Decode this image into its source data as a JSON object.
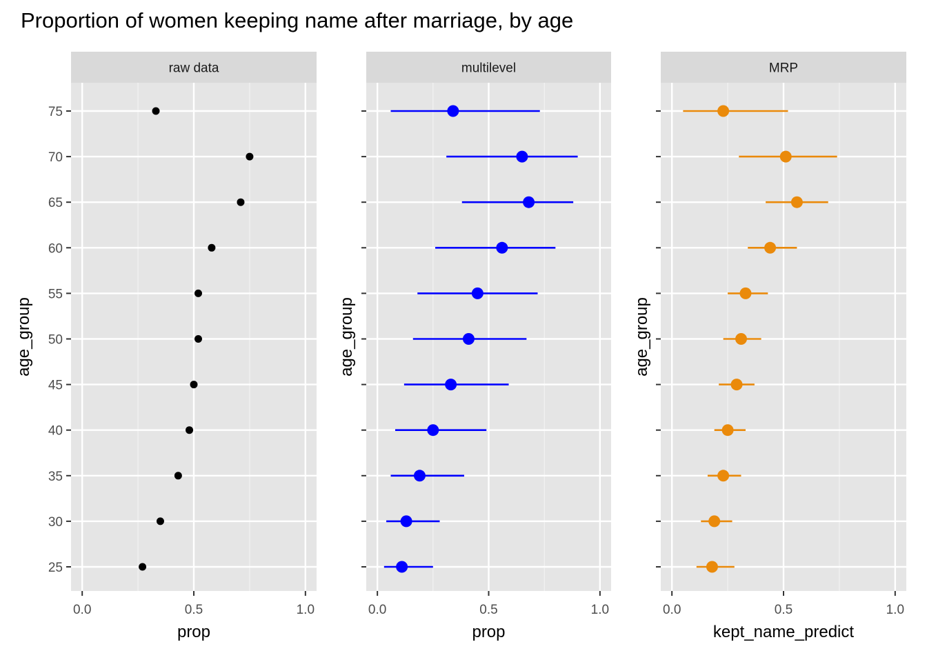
{
  "chart_data": {
    "type": "scatter",
    "title": "Proportion of women keeping name after marriage, by age",
    "y_categories": [
      "25",
      "30",
      "35",
      "40",
      "45",
      "50",
      "55",
      "60",
      "65",
      "70",
      "75"
    ],
    "x_ticks": [
      "0.0",
      "0.5",
      "1.0"
    ],
    "x_tick_values": [
      0,
      0.5,
      1.0
    ],
    "xlim": [
      -0.05,
      1.05
    ],
    "grid": true,
    "legend": "none",
    "panels": [
      {
        "strip": "raw data",
        "xlabel": "prop",
        "ylabel": "age_group",
        "show_y_labels": true,
        "color": "#000000",
        "point_style": "small",
        "points": [
          {
            "age": "25",
            "value": 0.27
          },
          {
            "age": "30",
            "value": 0.35
          },
          {
            "age": "35",
            "value": 0.43
          },
          {
            "age": "40",
            "value": 0.48
          },
          {
            "age": "45",
            "value": 0.5
          },
          {
            "age": "50",
            "value": 0.52
          },
          {
            "age": "55",
            "value": 0.52
          },
          {
            "age": "60",
            "value": 0.58
          },
          {
            "age": "65",
            "value": 0.71
          },
          {
            "age": "70",
            "value": 0.75
          },
          {
            "age": "75",
            "value": 0.33
          }
        ]
      },
      {
        "strip": "multilevel",
        "xlabel": "prop",
        "ylabel": "age_group",
        "show_y_labels": false,
        "color": "#0000ff",
        "point_style": "large",
        "points": [
          {
            "age": "25",
            "value": 0.11,
            "low": 0.03,
            "high": 0.25
          },
          {
            "age": "30",
            "value": 0.13,
            "low": 0.04,
            "high": 0.28
          },
          {
            "age": "35",
            "value": 0.19,
            "low": 0.06,
            "high": 0.39
          },
          {
            "age": "40",
            "value": 0.25,
            "low": 0.08,
            "high": 0.49
          },
          {
            "age": "45",
            "value": 0.33,
            "low": 0.12,
            "high": 0.59
          },
          {
            "age": "50",
            "value": 0.41,
            "low": 0.16,
            "high": 0.67
          },
          {
            "age": "55",
            "value": 0.45,
            "low": 0.18,
            "high": 0.72
          },
          {
            "age": "60",
            "value": 0.56,
            "low": 0.26,
            "high": 0.8
          },
          {
            "age": "65",
            "value": 0.68,
            "low": 0.38,
            "high": 0.88
          },
          {
            "age": "70",
            "value": 0.65,
            "low": 0.31,
            "high": 0.9
          },
          {
            "age": "75",
            "value": 0.34,
            "low": 0.06,
            "high": 0.73
          }
        ]
      },
      {
        "strip": "MRP",
        "xlabel": "kept_name_predict",
        "ylabel": "age_group",
        "show_y_labels": false,
        "color": "#ea8a0b",
        "point_style": "large",
        "points": [
          {
            "age": "25",
            "value": 0.18,
            "low": 0.11,
            "high": 0.28
          },
          {
            "age": "30",
            "value": 0.19,
            "low": 0.13,
            "high": 0.27
          },
          {
            "age": "35",
            "value": 0.23,
            "low": 0.16,
            "high": 0.31
          },
          {
            "age": "40",
            "value": 0.25,
            "low": 0.19,
            "high": 0.33
          },
          {
            "age": "45",
            "value": 0.29,
            "low": 0.21,
            "high": 0.37
          },
          {
            "age": "50",
            "value": 0.31,
            "low": 0.23,
            "high": 0.4
          },
          {
            "age": "55",
            "value": 0.33,
            "low": 0.25,
            "high": 0.43
          },
          {
            "age": "60",
            "value": 0.44,
            "low": 0.34,
            "high": 0.56
          },
          {
            "age": "65",
            "value": 0.56,
            "low": 0.42,
            "high": 0.7
          },
          {
            "age": "70",
            "value": 0.51,
            "low": 0.3,
            "high": 0.74
          },
          {
            "age": "75",
            "value": 0.23,
            "low": 0.05,
            "high": 0.52
          }
        ]
      }
    ]
  }
}
